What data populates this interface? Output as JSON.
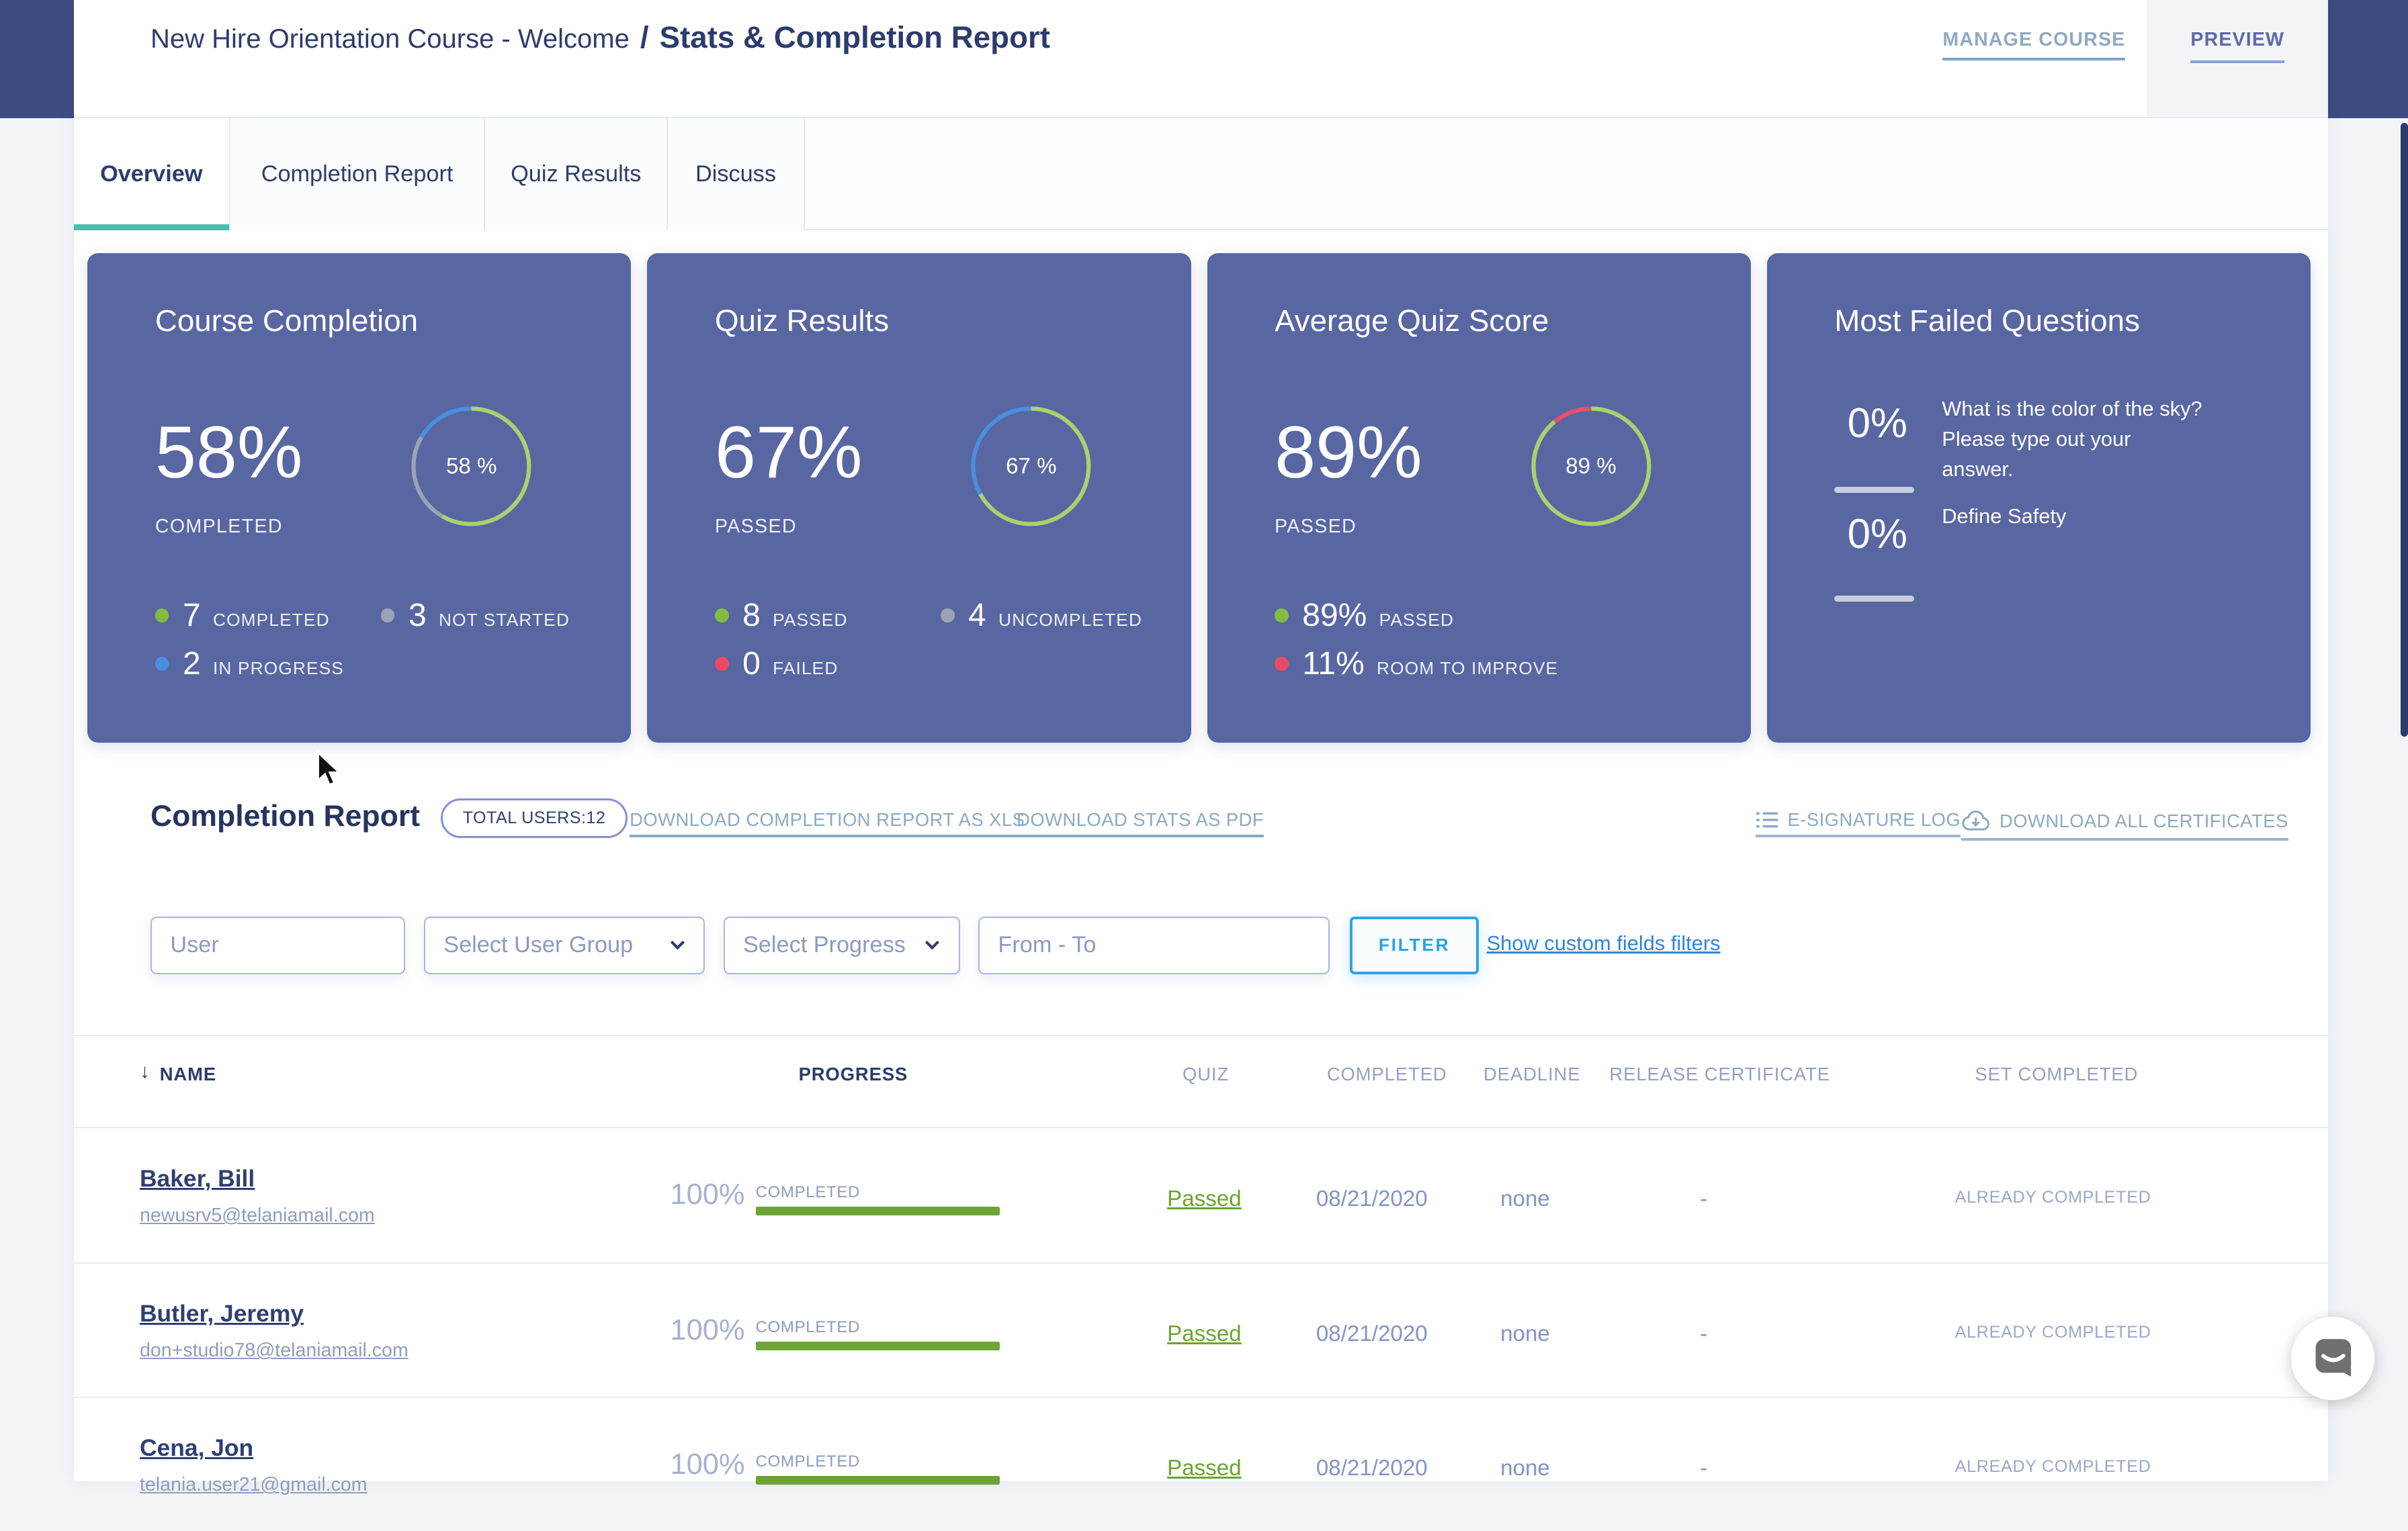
{
  "header": {
    "breadcrumb": "New Hire Orientation Course - Welcome",
    "separator": "/",
    "title": "Stats & Completion Report",
    "manage_course": "MANAGE COURSE",
    "preview": "PREVIEW"
  },
  "tabs": [
    {
      "label": "Overview",
      "active": true
    },
    {
      "label": "Completion Report",
      "active": false
    },
    {
      "label": "Quiz Results",
      "active": false
    },
    {
      "label": "Discuss",
      "active": false
    }
  ],
  "cards": [
    {
      "title": "Course Completion",
      "big_pct": "58%",
      "big_label": "COMPLETED",
      "ring": {
        "label": "58 %",
        "segments": [
          {
            "color": "#a6d36e",
            "pct": 58.33
          },
          {
            "color": "#99a4b2",
            "pct": 25
          },
          {
            "color": "#4a8fdd",
            "pct": 16.67
          }
        ]
      },
      "legend": [
        {
          "value": "7",
          "label": "COMPLETED",
          "color": "#85bb40"
        },
        {
          "value": "3",
          "label": "NOT STARTED",
          "color": "#9aa4b4"
        },
        {
          "value": "2",
          "label": "IN PROGRESS",
          "color": "#4a8fdd"
        }
      ]
    },
    {
      "title": "Quiz Results",
      "big_pct": "67%",
      "big_label": "PASSED",
      "ring": {
        "label": "67 %",
        "segments": [
          {
            "color": "#a6d36e",
            "pct": 67
          },
          {
            "color": "#4a8fdd",
            "pct": 33
          }
        ]
      },
      "legend": [
        {
          "value": "8",
          "label": "PASSED",
          "color": "#85bb40"
        },
        {
          "value": "4",
          "label": "UNCOMPLETED",
          "color": "#9aa4b4"
        },
        {
          "value": "0",
          "label": "FAILED",
          "color": "#e84b63"
        }
      ]
    },
    {
      "title": "Average Quiz Score",
      "big_pct": "89%",
      "big_label": "PASSED",
      "ring": {
        "label": "89 %",
        "segments": [
          {
            "color": "#a6d36e",
            "pct": 89
          },
          {
            "color": "#e9506a",
            "pct": 11
          }
        ]
      },
      "legend": [
        {
          "value": "89%",
          "label": "PASSED",
          "color": "#85bb40"
        },
        {
          "value": "11%",
          "label": "ROOM TO IMPROVE",
          "color": "#e84b63"
        }
      ]
    },
    {
      "title": "Most Failed Questions",
      "items": [
        {
          "pct": "0%",
          "text": "What is the color of the sky? Please type out your answer."
        },
        {
          "pct": "0%",
          "text": "Define Safety"
        }
      ]
    }
  ],
  "section": {
    "heading": "Completion Report",
    "total_users_badge": "TOTAL USERS:12",
    "download_xls": "DOWNLOAD COMPLETION REPORT AS XLS",
    "download_pdf": "DOWNLOAD STATS AS PDF",
    "esignature_log": "E-SIGNATURE LOG",
    "download_certificates": "DOWNLOAD ALL CERTIFICATES"
  },
  "filters": {
    "user_placeholder": "User",
    "user_group_placeholder": "Select User Group",
    "progress_placeholder": "Select Progress",
    "date_placeholder": "From - To",
    "filter_button": "FILTER",
    "custom_fields_link": "Show custom fields filters"
  },
  "table": {
    "sort_icon": "↓",
    "columns": [
      "NAME",
      "PROGRESS",
      "QUIZ",
      "COMPLETED",
      "DEADLINE",
      "RELEASE CERTIFICATE",
      "SET COMPLETED"
    ],
    "rows": [
      {
        "name": "Baker, Bill",
        "email": "newusrv5@telaniamail.com",
        "progress_pct": "100%",
        "progress_label": "COMPLETED",
        "quiz": "Passed",
        "completed": "08/21/2020",
        "deadline": "none",
        "release_certificate": "-",
        "set_completed": "ALREADY COMPLETED"
      },
      {
        "name": "Butler, Jeremy",
        "email": "don+studio78@telaniamail.com",
        "progress_pct": "100%",
        "progress_label": "COMPLETED",
        "quiz": "Passed",
        "completed": "08/21/2020",
        "deadline": "none",
        "release_certificate": "-",
        "set_completed": "ALREADY COMPLETED"
      },
      {
        "name": "Cena, Jon",
        "email": "telania.user21@gmail.com",
        "progress_pct": "100%",
        "progress_label": "COMPLETED",
        "quiz": "Passed",
        "completed": "08/21/2020",
        "deadline": "none",
        "release_certificate": "-",
        "set_completed": "ALREADY COMPLETED"
      }
    ]
  },
  "colors": {
    "card_bg": "#5866a2",
    "accent_teal": "#43c1ae",
    "navy": "#2d3c6e",
    "steel_link": "#8aa9c4",
    "progress_bar_green": "#6ca436",
    "passed_green": "#69a52e",
    "filter_blue": "#2ea4e4"
  }
}
